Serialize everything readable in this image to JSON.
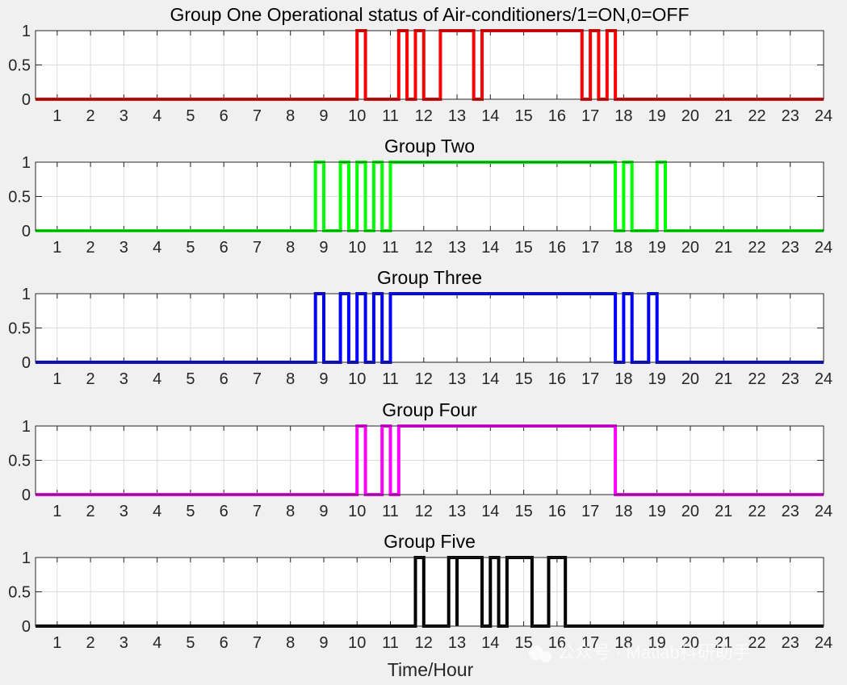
{
  "chart_data": [
    {
      "type": "line",
      "title": "Group One Operational status of Air-conditioners/1=ON,0=OFF",
      "xlabel": "",
      "ylabel": "",
      "xlim": [
        0.35,
        24
      ],
      "ylim": [
        0,
        1
      ],
      "xticks": [
        "1",
        "2",
        "3",
        "4",
        "5",
        "6",
        "7",
        "8",
        "9",
        "10",
        "11",
        "12",
        "13",
        "14",
        "15",
        "16",
        "17",
        "18",
        "19",
        "20",
        "21",
        "22",
        "23",
        "24"
      ],
      "yticks": [
        "0",
        "0.5",
        "1"
      ],
      "grid": true,
      "color": "#ff0000",
      "series": [
        {
          "x": [
            0.35,
            10.0,
            10.0,
            10.25,
            10.25,
            11.25,
            11.25,
            11.5,
            11.5,
            11.75,
            11.75,
            12.0,
            12.0,
            12.5,
            12.5,
            12.5,
            12.75,
            13.5,
            13.5,
            13.75,
            13.75,
            16.75,
            16.75,
            17.0,
            17.0,
            17.25,
            17.25,
            17.5,
            17.5,
            17.75,
            17.75,
            24
          ],
          "y": [
            0,
            0,
            1,
            1,
            0,
            0,
            1,
            1,
            0,
            0,
            1,
            1,
            0,
            0,
            1,
            1,
            1,
            1,
            0,
            0,
            1,
            1,
            0,
            0,
            1,
            1,
            0,
            0,
            1,
            1,
            0,
            0
          ]
        }
      ]
    },
    {
      "type": "line",
      "title": "Group Two",
      "xlabel": "",
      "ylabel": "",
      "xlim": [
        0.35,
        24
      ],
      "ylim": [
        0,
        1
      ],
      "xticks": [
        "1",
        "2",
        "3",
        "4",
        "5",
        "6",
        "7",
        "8",
        "9",
        "10",
        "11",
        "12",
        "13",
        "14",
        "15",
        "16",
        "17",
        "18",
        "19",
        "20",
        "21",
        "22",
        "23",
        "24"
      ],
      "yticks": [
        "0",
        "0.5",
        "1"
      ],
      "grid": true,
      "color": "#00ff00",
      "series": [
        {
          "x": [
            0.35,
            8.75,
            8.75,
            9.0,
            9.0,
            9.5,
            9.5,
            9.75,
            9.75,
            10.0,
            10.0,
            10.25,
            10.25,
            10.5,
            10.5,
            10.75,
            10.75,
            11.0,
            11.0,
            17.75,
            17.75,
            18.0,
            18.0,
            18.25,
            18.25,
            19.0,
            19.0,
            19.25,
            19.25,
            24
          ],
          "y": [
            0,
            0,
            1,
            1,
            0,
            0,
            1,
            1,
            0,
            0,
            1,
            1,
            0,
            0,
            1,
            1,
            0,
            0,
            1,
            1,
            0,
            0,
            1,
            1,
            0,
            0,
            1,
            1,
            0,
            0
          ]
        }
      ]
    },
    {
      "type": "line",
      "title": "Group Three",
      "xlabel": "",
      "ylabel": "",
      "xlim": [
        0.35,
        24
      ],
      "ylim": [
        0,
        1
      ],
      "xticks": [
        "1",
        "2",
        "3",
        "4",
        "5",
        "6",
        "7",
        "8",
        "9",
        "10",
        "11",
        "12",
        "13",
        "14",
        "15",
        "16",
        "17",
        "18",
        "19",
        "20",
        "21",
        "22",
        "23",
        "24"
      ],
      "yticks": [
        "0",
        "0.5",
        "1"
      ],
      "grid": true,
      "color": "#0000ff",
      "series": [
        {
          "x": [
            0.35,
            8.75,
            8.75,
            9.0,
            9.0,
            9.5,
            9.5,
            9.75,
            9.75,
            10.0,
            10.0,
            10.25,
            10.25,
            10.5,
            10.5,
            10.75,
            10.75,
            11.0,
            11.0,
            17.75,
            17.75,
            18.0,
            18.0,
            18.25,
            18.25,
            18.75,
            18.75,
            19.0,
            19.0,
            24
          ],
          "y": [
            0,
            0,
            1,
            1,
            0,
            0,
            1,
            1,
            0,
            0,
            1,
            1,
            0,
            0,
            1,
            1,
            0,
            0,
            1,
            1,
            0,
            0,
            1,
            1,
            0,
            0,
            1,
            1,
            0,
            0
          ]
        }
      ]
    },
    {
      "type": "line",
      "title": "Group Four",
      "xlabel": "",
      "ylabel": "",
      "xlim": [
        0.35,
        24
      ],
      "ylim": [
        0,
        1
      ],
      "xticks": [
        "1",
        "2",
        "3",
        "4",
        "5",
        "6",
        "7",
        "8",
        "9",
        "10",
        "11",
        "12",
        "13",
        "14",
        "15",
        "16",
        "17",
        "18",
        "19",
        "20",
        "21",
        "22",
        "23",
        "24"
      ],
      "yticks": [
        "0",
        "0.5",
        "1"
      ],
      "grid": true,
      "color": "#ff00ff",
      "series": [
        {
          "x": [
            0.35,
            10.0,
            10.0,
            10.25,
            10.25,
            10.75,
            10.75,
            11.0,
            11.0,
            11.25,
            11.25,
            17.75,
            17.75,
            24
          ],
          "y": [
            0,
            0,
            1,
            1,
            0,
            0,
            1,
            1,
            0,
            0,
            1,
            1,
            0,
            0
          ]
        }
      ]
    },
    {
      "type": "line",
      "title": "Group Five",
      "xlabel": "Time/Hour",
      "ylabel": "",
      "xlim": [
        0.35,
        24
      ],
      "ylim": [
        0,
        1
      ],
      "xticks": [
        "1",
        "2",
        "3",
        "4",
        "5",
        "6",
        "7",
        "8",
        "9",
        "10",
        "11",
        "12",
        "13",
        "14",
        "15",
        "16",
        "17",
        "18",
        "19",
        "20",
        "21",
        "22",
        "23",
        "24"
      ],
      "yticks": [
        "0",
        "0.5",
        "1"
      ],
      "grid": true,
      "color": "#000000",
      "series": [
        {
          "x": [
            0.35,
            11.75,
            11.75,
            12.0,
            12.0,
            12.75,
            12.75,
            13.0,
            13.0,
            13.0,
            13.25,
            13.25,
            13.75,
            13.75,
            14.0,
            14.0,
            14.25,
            14.25,
            14.5,
            14.5,
            15.25,
            15.25,
            15.75,
            15.75,
            16.25,
            16.25,
            24
          ],
          "y": [
            0,
            0,
            1,
            1,
            0,
            0,
            1,
            1,
            0,
            1,
            1,
            1,
            1,
            0,
            0,
            1,
            1,
            0,
            0,
            1,
            1,
            0,
            0,
            1,
            1,
            0,
            0
          ]
        }
      ]
    }
  ],
  "watermark": "公众号 · Matlab科研助手"
}
